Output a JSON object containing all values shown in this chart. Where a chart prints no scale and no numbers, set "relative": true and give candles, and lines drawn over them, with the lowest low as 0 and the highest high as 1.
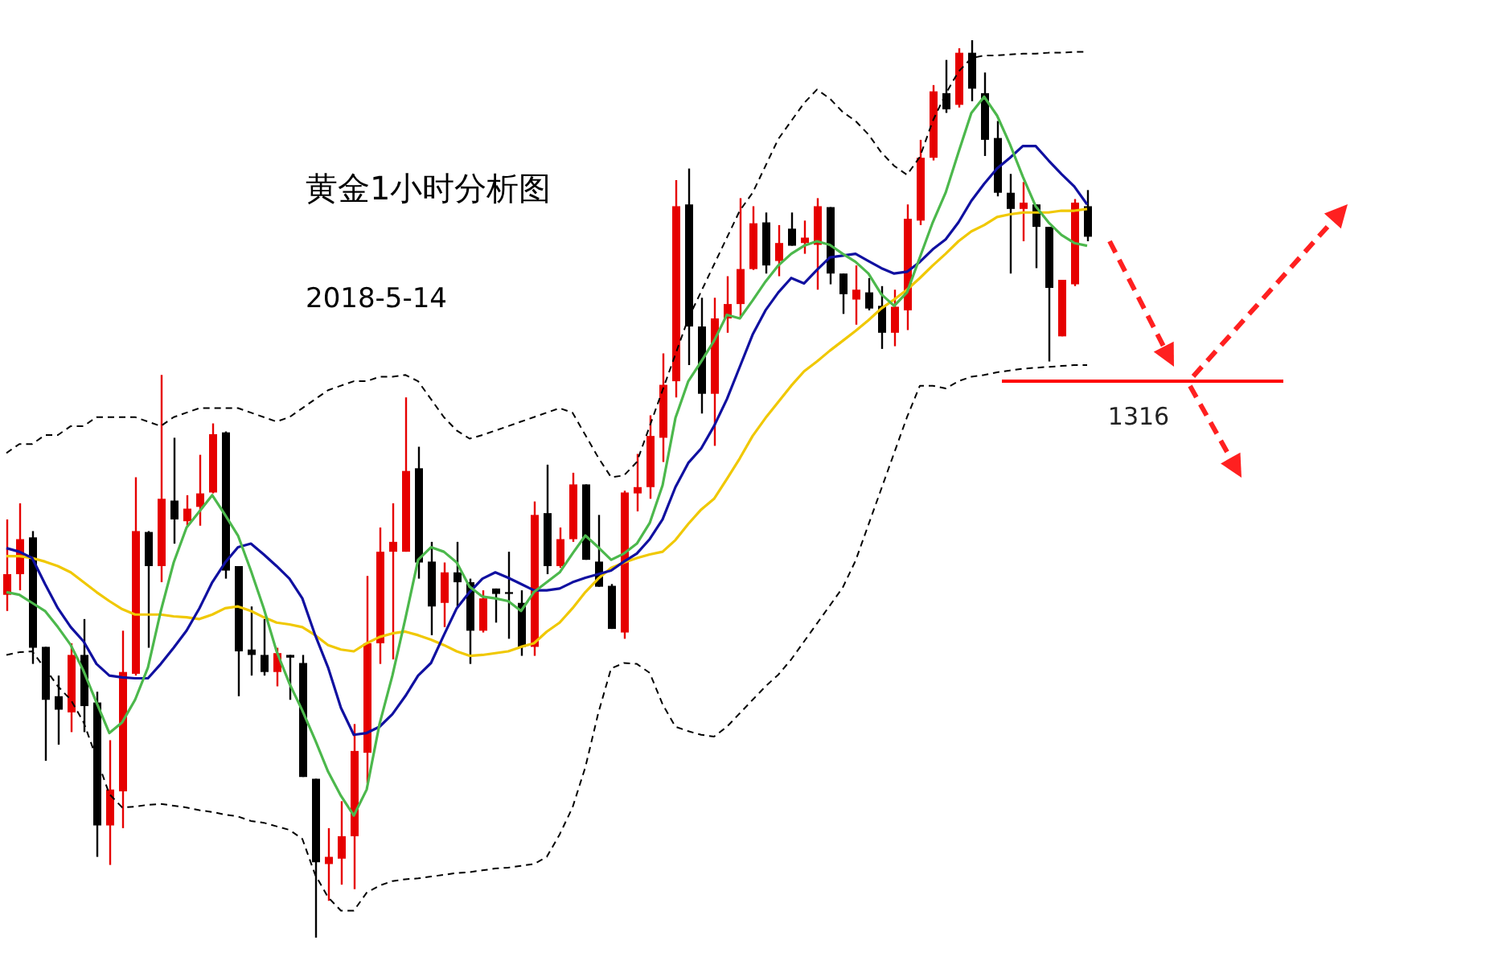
{
  "chart_data": {
    "type": "candlestick",
    "title": "黄金1小时分析图",
    "subtitle": "2018-5-14",
    "relative": true,
    "categories": [
      null,
      null,
      null,
      null,
      null,
      null,
      null,
      null,
      null,
      null,
      null,
      null,
      null,
      null,
      null,
      null,
      null,
      null,
      null,
      null,
      null,
      null,
      null,
      null,
      null,
      null,
      null,
      null,
      null,
      null,
      null,
      null,
      null,
      null,
      null,
      null,
      null,
      null,
      null,
      null,
      null,
      null,
      null,
      null,
      null,
      null,
      null,
      null,
      null,
      null,
      null,
      null,
      null,
      null,
      null,
      null,
      null,
      null,
      null,
      null,
      null,
      null,
      null,
      null,
      null,
      null,
      null,
      null,
      null,
      null,
      null,
      null,
      null,
      null,
      null,
      null,
      null,
      null,
      null,
      null,
      null,
      null,
      null,
      null,
      null
    ],
    "ohlc": [
      [
        0.382,
        0.466,
        0.364,
        0.405
      ],
      [
        0.405,
        0.484,
        0.387,
        0.444
      ],
      [
        0.446,
        0.453,
        0.305,
        0.323
      ],
      [
        0.324,
        0.324,
        0.197,
        0.265
      ],
      [
        0.269,
        0.292,
        0.215,
        0.254
      ],
      [
        0.251,
        0.328,
        0.229,
        0.315
      ],
      [
        0.315,
        0.355,
        0.229,
        0.258
      ],
      [
        0.262,
        0.274,
        0.09,
        0.125
      ],
      [
        0.125,
        0.22,
        0.081,
        0.165
      ],
      [
        0.163,
        0.342,
        0.122,
        0.296
      ],
      [
        0.294,
        0.513,
        0.292,
        0.453
      ],
      [
        0.452,
        0.453,
        0.323,
        0.414
      ],
      [
        0.414,
        0.627,
        0.396,
        0.489
      ],
      [
        0.487,
        0.557,
        0.439,
        0.466
      ],
      [
        0.464,
        0.493,
        0.459,
        0.478
      ],
      [
        0.48,
        0.538,
        0.459,
        0.495
      ],
      [
        0.496,
        0.573,
        0.495,
        0.561
      ],
      [
        0.563,
        0.564,
        0.4,
        0.409
      ],
      [
        0.414,
        0.414,
        0.269,
        0.319
      ],
      [
        0.321,
        0.369,
        0.292,
        0.315
      ],
      [
        0.315,
        0.355,
        0.292,
        0.296
      ],
      [
        0.296,
        0.323,
        0.28,
        0.317
      ],
      [
        0.315,
        0.315,
        0.265,
        0.312
      ],
      [
        0.306,
        0.315,
        0.179,
        0.179
      ],
      [
        0.177,
        0.177,
        0,
        0.084
      ],
      [
        0.082,
        0.122,
        0.041,
        0.09
      ],
      [
        0.088,
        0.152,
        0.059,
        0.113
      ],
      [
        0.113,
        0.238,
        0.054,
        0.208
      ],
      [
        0.206,
        0.403,
        0.172,
        0.328
      ],
      [
        0.328,
        0.457,
        0.305,
        0.43
      ],
      [
        0.43,
        0.484,
        0.31,
        0.441
      ],
      [
        0.43,
        0.602,
        0.43,
        0.52
      ],
      [
        0.523,
        0.547,
        0.4,
        0.418
      ],
      [
        0.419,
        0.441,
        0.337,
        0.369
      ],
      [
        0.373,
        0.418,
        0.346,
        0.407
      ],
      [
        0.407,
        0.441,
        0.369,
        0.396
      ],
      [
        0.396,
        0.4,
        0.305,
        0.342
      ],
      [
        0.342,
        0.387,
        0.34,
        0.378
      ],
      [
        0.389,
        0.389,
        0.351,
        0.383
      ],
      [
        0.385,
        0.43,
        0.333,
        0.383
      ],
      [
        0.373,
        0.387,
        0.314,
        0.324
      ],
      [
        0.324,
        0.486,
        0.314,
        0.471
      ],
      [
        0.473,
        0.527,
        0.405,
        0.414
      ],
      [
        0.414,
        0.457,
        0.412,
        0.444
      ],
      [
        0.444,
        0.518,
        0.441,
        0.505
      ],
      [
        0.505,
        0.505,
        0.421,
        0.421
      ],
      [
        0.419,
        0.471,
        0.391,
        0.391
      ],
      [
        0.392,
        0.394,
        0.344,
        0.344
      ],
      [
        0.34,
        0.498,
        0.333,
        0.496
      ],
      [
        0.495,
        0.539,
        0.475,
        0.502
      ],
      [
        0.502,
        0.582,
        0.489,
        0.559
      ],
      [
        0.557,
        0.651,
        0.53,
        0.616
      ],
      [
        0.62,
        0.844,
        0.602,
        0.815
      ],
      [
        0.817,
        0.857,
        0.638,
        0.681
      ],
      [
        0.681,
        0.713,
        0.584,
        0.606
      ],
      [
        0.606,
        0.713,
        0.548,
        0.69
      ],
      [
        0.69,
        0.737,
        0.674,
        0.706
      ],
      [
        0.706,
        0.824,
        0.69,
        0.745
      ],
      [
        0.745,
        0.815,
        0.744,
        0.796
      ],
      [
        0.797,
        0.808,
        0.74,
        0.749
      ],
      [
        0.754,
        0.794,
        0.737,
        0.774
      ],
      [
        0.79,
        0.808,
        0.771,
        0.771
      ],
      [
        0.774,
        0.799,
        0.762,
        0.78
      ],
      [
        0.772,
        0.824,
        0.722,
        0.815
      ],
      [
        0.814,
        0.814,
        0.728,
        0.74
      ],
      [
        0.74,
        0.74,
        0.695,
        0.717
      ],
      [
        0.711,
        0.749,
        0.683,
        0.722
      ],
      [
        0.719,
        0.735,
        0.699,
        0.701
      ],
      [
        0.704,
        0.726,
        0.656,
        0.674
      ],
      [
        0.674,
        0.722,
        0.659,
        0.703
      ],
      [
        0.699,
        0.817,
        0.677,
        0.801
      ],
      [
        0.799,
        0.889,
        0.794,
        0.869
      ],
      [
        0.869,
        0.95,
        0.866,
        0.943
      ],
      [
        0.941,
        0.978,
        0.919,
        0.923
      ],
      [
        0.928,
        0.991,
        0.925,
        0.986
      ],
      [
        0.986,
        1,
        0.932,
        0.946
      ],
      [
        0.941,
        0.964,
        0.871,
        0.889
      ],
      [
        0.891,
        0.91,
        0.826,
        0.83
      ],
      [
        0.83,
        0.851,
        0.74,
        0.812
      ],
      [
        0.812,
        0.842,
        0.776,
        0.819
      ],
      [
        0.817,
        0.817,
        0.746,
        0.792
      ],
      [
        0.792,
        0.792,
        0.642,
        0.724
      ],
      [
        0.67,
        0.733,
        0.67,
        0.733
      ],
      [
        0.728,
        0.823,
        0.726,
        0.819
      ],
      [
        0.815,
        0.833,
        0.776,
        0.781
      ]
    ],
    "series": [
      {
        "type": "line",
        "color": "#000000",
        "line_style": "dashed",
        "values": [
          0.54,
          0.55,
          0.55,
          0.56,
          0.56,
          0.57,
          0.57,
          0.58,
          0.58,
          0.58,
          0.58,
          0.575,
          0.57,
          0.58,
          0.585,
          0.59,
          0.59,
          0.59,
          0.59,
          0.585,
          0.58,
          0.575,
          0.58,
          0.59,
          0.6,
          0.61,
          0.615,
          0.62,
          0.62,
          0.625,
          0.625,
          0.627,
          0.62,
          0.6,
          0.58,
          0.565,
          0.556,
          0.56,
          0.565,
          0.57,
          0.575,
          0.58,
          0.585,
          0.59,
          0.585,
          0.56,
          0.535,
          0.513,
          0.515,
          0.53,
          0.57,
          0.61,
          0.65,
          0.69,
          0.72,
          0.75,
          0.78,
          0.81,
          0.83,
          0.86,
          0.89,
          0.91,
          0.93,
          0.945,
          0.935,
          0.92,
          0.91,
          0.895,
          0.875,
          0.86,
          0.85,
          0.87,
          0.91,
          0.94,
          0.965,
          0.98,
          0.983,
          0.983,
          0.984,
          0.985,
          0.985,
          0.986,
          0.986,
          0.987,
          0.987
        ]
      },
      {
        "type": "line",
        "color": "#000000",
        "line_style": "dashed",
        "values": [
          0.315,
          0.318,
          0.319,
          0.3,
          0.28,
          0.265,
          0.24,
          0.2,
          0.16,
          0.145,
          0.146,
          0.148,
          0.149,
          0.147,
          0.145,
          0.142,
          0.14,
          0.137,
          0.135,
          0.13,
          0.128,
          0.124,
          0.12,
          0.11,
          0.07,
          0.045,
          0.03,
          0.03,
          0.05,
          0.058,
          0.063,
          0.065,
          0.066,
          0.068,
          0.07,
          0.072,
          0.073,
          0.075,
          0.077,
          0.078,
          0.08,
          0.082,
          0.09,
          0.115,
          0.145,
          0.19,
          0.25,
          0.3,
          0.306,
          0.305,
          0.295,
          0.26,
          0.235,
          0.23,
          0.226,
          0.224,
          0.235,
          0.25,
          0.265,
          0.28,
          0.293,
          0.31,
          0.33,
          0.35,
          0.37,
          0.39,
          0.42,
          0.46,
          0.5,
          0.54,
          0.58,
          0.615,
          0.615,
          0.612,
          0.62,
          0.625,
          0.627,
          0.63,
          0.632,
          0.634,
          0.635,
          0.636,
          0.637,
          0.638,
          0.638
        ]
      },
      {
        "type": "line",
        "color": "#f0c800",
        "line_style": "solid",
        "values": [
          0.425,
          0.425,
          0.423,
          0.419,
          0.414,
          0.407,
          0.396,
          0.385,
          0.375,
          0.366,
          0.36,
          0.36,
          0.36,
          0.358,
          0.357,
          0.355,
          0.36,
          0.367,
          0.369,
          0.364,
          0.357,
          0.351,
          0.349,
          0.346,
          0.337,
          0.326,
          0.321,
          0.319,
          0.328,
          0.335,
          0.339,
          0.341,
          0.337,
          0.332,
          0.326,
          0.319,
          0.314,
          0.315,
          0.317,
          0.319,
          0.324,
          0.328,
          0.341,
          0.351,
          0.367,
          0.385,
          0.4,
          0.412,
          0.418,
          0.423,
          0.427,
          0.43,
          0.443,
          0.461,
          0.477,
          0.489,
          0.511,
          0.534,
          0.559,
          0.579,
          0.597,
          0.615,
          0.631,
          0.642,
          0.654,
          0.665,
          0.676,
          0.688,
          0.701,
          0.711,
          0.722,
          0.735,
          0.749,
          0.762,
          0.776,
          0.787,
          0.794,
          0.803,
          0.806,
          0.808,
          0.808,
          0.808,
          0.81,
          0.81,
          0.812
        ]
      },
      {
        "type": "line",
        "color": "#1010a0",
        "line_style": "solid",
        "values": [
          0.434,
          0.43,
          0.423,
          0.394,
          0.367,
          0.346,
          0.33,
          0.305,
          0.292,
          0.29,
          0.289,
          0.289,
          0.305,
          0.323,
          0.342,
          0.367,
          0.396,
          0.418,
          0.435,
          0.439,
          0.427,
          0.414,
          0.4,
          0.378,
          0.337,
          0.301,
          0.256,
          0.226,
          0.228,
          0.235,
          0.249,
          0.269,
          0.292,
          0.306,
          0.337,
          0.367,
          0.385,
          0.4,
          0.407,
          0.401,
          0.394,
          0.387,
          0.387,
          0.389,
          0.396,
          0.401,
          0.405,
          0.409,
          0.419,
          0.428,
          0.444,
          0.466,
          0.502,
          0.529,
          0.545,
          0.57,
          0.6,
          0.636,
          0.672,
          0.699,
          0.719,
          0.735,
          0.729,
          0.744,
          0.758,
          0.76,
          0.762,
          0.754,
          0.746,
          0.74,
          0.742,
          0.753,
          0.767,
          0.778,
          0.797,
          0.821,
          0.84,
          0.857,
          0.869,
          0.882,
          0.882,
          0.866,
          0.851,
          0.837,
          0.817
        ]
      },
      {
        "type": "line",
        "color": "#4cb84c",
        "line_style": "solid",
        "values": [
          0.385,
          0.382,
          0.373,
          0.364,
          0.346,
          0.326,
          0.297,
          0.262,
          0.228,
          0.24,
          0.265,
          0.301,
          0.364,
          0.418,
          0.457,
          0.475,
          0.493,
          0.471,
          0.448,
          0.409,
          0.367,
          0.319,
          0.283,
          0.253,
          0.22,
          0.185,
          0.158,
          0.136,
          0.165,
          0.238,
          0.292,
          0.355,
          0.421,
          0.435,
          0.43,
          0.418,
          0.391,
          0.38,
          0.378,
          0.375,
          0.364,
          0.385,
          0.396,
          0.407,
          0.428,
          0.448,
          0.435,
          0.421,
          0.428,
          0.439,
          0.462,
          0.504,
          0.579,
          0.62,
          0.642,
          0.665,
          0.694,
          0.69,
          0.71,
          0.731,
          0.749,
          0.762,
          0.771,
          0.776,
          0.772,
          0.762,
          0.753,
          0.74,
          0.717,
          0.704,
          0.719,
          0.758,
          0.797,
          0.83,
          0.875,
          0.919,
          0.937,
          0.916,
          0.884,
          0.848,
          0.815,
          0.797,
          0.783,
          0.774,
          0.771
        ]
      }
    ],
    "ref_lines": [
      {
        "axis": "y",
        "value": 0.62,
        "color": "#ff0000"
      }
    ],
    "annotations": [
      {
        "text": "1316",
        "y": 0.62
      }
    ]
  }
}
